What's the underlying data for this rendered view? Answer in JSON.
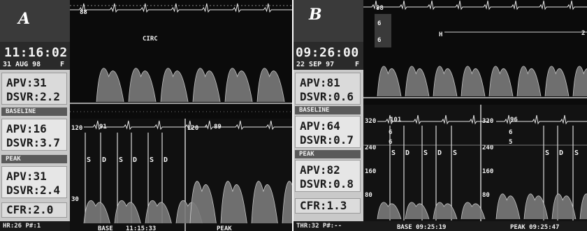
{
  "panel_a": {
    "letter": "A",
    "time": "11:16:02",
    "date": "31 AUG 98",
    "date_suffix": "F",
    "top_label": "CIRC",
    "hr_top": "88",
    "box1": {
      "apv": "APV:31",
      "dsvr": "DSVR:2.2"
    },
    "baseline_label": "BASELINE",
    "baseline": {
      "apv": "APV:16",
      "dsvr": "DSVR:3.7"
    },
    "peak_label": "PEAK",
    "peak": {
      "apv": "APV:31",
      "dsvr": "DSVR:2.4"
    },
    "cfr": "CFR:2.0",
    "footer": "HR:26  P#:1",
    "lower_left": {
      "scale": "120",
      "hr": "91",
      "mid": "30"
    },
    "lower_right": {
      "scale": "120",
      "hr": "89"
    },
    "sd_markers": [
      "S",
      "D",
      "S",
      "D",
      "S",
      "D"
    ],
    "base_label": "BASE",
    "base_time": "11:15:33",
    "peak_footer": "PEAK"
  },
  "panel_b": {
    "letter": "B",
    "time": "09:26:00",
    "date": "22 SEP 97",
    "date_suffix": "F",
    "hr_top": "88",
    "top_num1": "6",
    "top_num2": "6",
    "marker_h": "H",
    "right_num": "2",
    "box1": {
      "apv": "APV:81",
      "dsvr": "DSVR:0.6"
    },
    "baseline_label": "BASELINE",
    "baseline": {
      "apv": "APV:64",
      "dsvr": "DSVR:0.7"
    },
    "peak_label": "PEAK",
    "peak": {
      "apv": "APV:82",
      "dsvr": "DSVR:0.8"
    },
    "cfr": "CFR:1.3",
    "footer": "THR:32  P#:--",
    "lower_left": {
      "scale": "320",
      "hr": "101",
      "mid": "240",
      "low": "160",
      "bottom": "80",
      "num1": "6",
      "num2": "6"
    },
    "lower_right": {
      "scale": "320",
      "hr": "96",
      "mid": "240",
      "low": "160",
      "bottom": "80",
      "num1": "6",
      "num2": "5"
    },
    "sd_markers": [
      "S",
      "D",
      "S",
      "D",
      "S"
    ],
    "sd_markers_right": [
      "S",
      "D",
      "S"
    ],
    "base_footer": "BASE 09:25:19",
    "peak_footer": "PEAK 09:25:47"
  }
}
